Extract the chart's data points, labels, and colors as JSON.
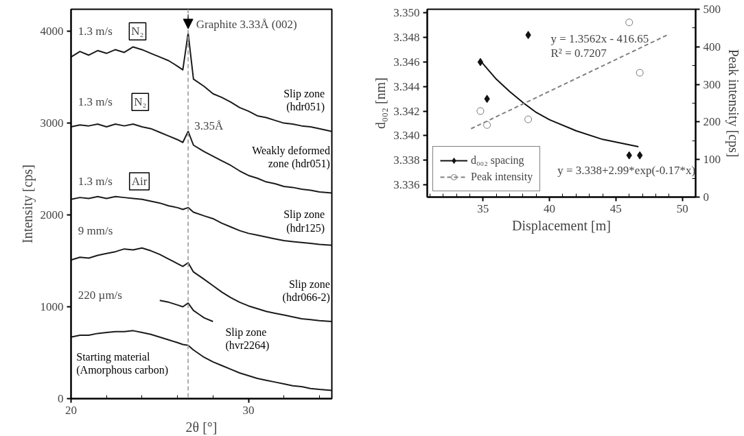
{
  "chart_data": [
    {
      "type": "line",
      "xlabel": "2θ [°]",
      "ylabel": "Intensity [cps]",
      "xlim": [
        20,
        34.7
      ],
      "ylim": [
        0,
        4240
      ],
      "xticks": [
        20,
        {
          "value": 22,
          "label": null
        },
        {
          "value": 24,
          "label": null
        },
        {
          "value": 26,
          "label": null
        },
        {
          "value": 28,
          "label": null
        },
        30,
        {
          "value": 32,
          "label": null
        },
        {
          "value": 34,
          "label": null
        }
      ],
      "yticks": [
        0,
        1000,
        2000,
        3000,
        4000
      ],
      "ref_lines": [
        {
          "axis": "x",
          "value": 26.6,
          "label": "Graphite 3.33Å (002)",
          "color": "#aaaaaa",
          "line_style": "dashed"
        }
      ],
      "annotations": [
        "1.3 m/s",
        "N₂",
        "1.3 m/s",
        "N₂",
        "1.3 m/s",
        "Air",
        "9 mm/s",
        "220 µm/s",
        "3.35Å"
      ],
      "series": [
        {
          "name": "Slip zone\n(hdr051)",
          "color": "#1a1a1a",
          "x": [
            20,
            20.5,
            21,
            21.5,
            22,
            22.5,
            23,
            23.5,
            24,
            24.5,
            25,
            25.5,
            26,
            26.3,
            26.6,
            26.9,
            27.5,
            28,
            28.5,
            29,
            29.5,
            30,
            30.5,
            31,
            31.5,
            32,
            32.5,
            33,
            33.5,
            34,
            34.7
          ],
          "values": [
            3720,
            3780,
            3740,
            3790,
            3760,
            3800,
            3770,
            3830,
            3800,
            3760,
            3720,
            3680,
            3620,
            3580,
            3980,
            3480,
            3400,
            3320,
            3280,
            3230,
            3170,
            3130,
            3080,
            3060,
            3030,
            3000,
            2990,
            2970,
            2960,
            2940,
            2910
          ]
        },
        {
          "name": "Weakly deformed\nzone (hdr051)",
          "color": "#1a1a1a",
          "x": [
            20,
            20.5,
            21,
            21.5,
            22,
            22.5,
            23,
            23.5,
            24,
            24.5,
            25,
            25.5,
            26,
            26.3,
            26.6,
            26.9,
            27.5,
            28,
            28.5,
            29,
            29.5,
            30,
            30.5,
            31,
            31.5,
            32,
            32.5,
            33,
            33.5,
            34,
            34.7
          ],
          "values": [
            2960,
            2980,
            2970,
            2990,
            2960,
            2990,
            2970,
            2990,
            2960,
            2940,
            2900,
            2860,
            2820,
            2790,
            2910,
            2760,
            2690,
            2640,
            2590,
            2540,
            2480,
            2430,
            2400,
            2360,
            2340,
            2310,
            2300,
            2280,
            2270,
            2250,
            2240
          ]
        },
        {
          "name": "Slip zone\n(hdr125)",
          "color": "#1a1a1a",
          "x": [
            20,
            20.5,
            21,
            21.5,
            22,
            22.5,
            23,
            23.5,
            24,
            24.5,
            25,
            25.5,
            26,
            26.3,
            26.6,
            26.9,
            27.5,
            28,
            28.5,
            29,
            29.5,
            30,
            30.5,
            31,
            31.5,
            32,
            32.5,
            33,
            33.5,
            34,
            34.7
          ],
          "values": [
            2170,
            2190,
            2180,
            2200,
            2180,
            2200,
            2190,
            2180,
            2170,
            2150,
            2130,
            2100,
            2080,
            2060,
            2080,
            2030,
            1990,
            1960,
            1910,
            1870,
            1830,
            1800,
            1780,
            1760,
            1740,
            1720,
            1710,
            1700,
            1690,
            1680,
            1670
          ]
        },
        {
          "name": "Slip zone\n(hdr066-2)",
          "color": "#1a1a1a",
          "x": [
            20,
            20.5,
            21,
            21.5,
            22,
            22.5,
            23,
            23.5,
            24,
            24.5,
            25,
            25.5,
            26,
            26.3,
            26.6,
            26.9,
            27.5,
            28,
            28.5,
            29,
            29.5,
            30,
            30.5,
            31,
            31.5,
            32,
            32.5,
            33,
            33.5,
            34,
            34.7
          ],
          "values": [
            1510,
            1540,
            1530,
            1560,
            1580,
            1600,
            1630,
            1620,
            1640,
            1610,
            1570,
            1520,
            1470,
            1440,
            1480,
            1380,
            1300,
            1230,
            1160,
            1100,
            1050,
            1010,
            980,
            950,
            930,
            910,
            890,
            870,
            860,
            850,
            840
          ]
        },
        {
          "name": "Slip zone\n(hvr2264)",
          "color": "#1a1a1a",
          "x": [
            25,
            25.5,
            26,
            26.3,
            26.6,
            26.9,
            27.2,
            27.5,
            28
          ],
          "values": [
            1070,
            1050,
            1020,
            1000,
            1040,
            960,
            920,
            880,
            840
          ]
        },
        {
          "name": "Starting material\n(Amorphous carbon)",
          "color": "#1a1a1a",
          "x": [
            20,
            20.5,
            21,
            21.5,
            22,
            22.5,
            23,
            23.5,
            24,
            24.5,
            25,
            25.5,
            26,
            26.3,
            26.6,
            26.9,
            27.5,
            28,
            28.5,
            29,
            29.5,
            30,
            30.5,
            31,
            31.5,
            32,
            32.5,
            33,
            33.5,
            34,
            34.7
          ],
          "values": [
            670,
            690,
            690,
            710,
            720,
            730,
            730,
            740,
            720,
            700,
            670,
            640,
            610,
            590,
            580,
            530,
            450,
            400,
            360,
            320,
            280,
            250,
            220,
            200,
            180,
            160,
            140,
            130,
            110,
            100,
            90
          ]
        }
      ]
    },
    {
      "type": "scatter",
      "xlabel": "Displacement [m]",
      "ylabel": "d₀₀₂ [nm]",
      "y2label": "Peak intensity [cps]",
      "xlim": [
        30.8,
        51
      ],
      "ylim": [
        3.335,
        3.3503
      ],
      "y2lim": [
        0,
        500
      ],
      "xticks": [
        {
          "value": 31,
          "label": null
        },
        {
          "value": 32,
          "label": null
        },
        {
          "value": 33,
          "label": null
        },
        {
          "value": 34,
          "label": null
        },
        35,
        {
          "value": 36,
          "label": null
        },
        {
          "value": 37,
          "label": null
        },
        {
          "value": 38,
          "label": null
        },
        {
          "value": 39,
          "label": null
        },
        40,
        {
          "value": 41,
          "label": null
        },
        {
          "value": 42,
          "label": null
        },
        {
          "value": 43,
          "label": null
        },
        {
          "value": 44,
          "label": null
        },
        45,
        {
          "value": 46,
          "label": null
        },
        {
          "value": 47,
          "label": null
        },
        {
          "value": 48,
          "label": null
        },
        {
          "value": 49,
          "label": null
        },
        50
      ],
      "yticks": [
        3.336,
        3.338,
        {
          "value": 3.34,
          "label": "3.340"
        },
        3.342,
        3.344,
        3.346,
        3.348,
        {
          "value": 3.35,
          "label": "3.350"
        }
      ],
      "y2ticks": [
        0,
        {
          "value": 50,
          "label": null
        },
        100,
        {
          "value": 150,
          "label": null
        },
        200,
        {
          "value": 250,
          "label": null
        },
        300,
        {
          "value": 350,
          "label": null
        },
        400,
        {
          "value": 450,
          "label": null
        },
        500
      ],
      "legend": "bottom left",
      "annotations": [
        "y = 1.3562x - 416.65",
        "R² = 0.7207",
        "y = 3.338+2.99*exp(-0.17*x)"
      ],
      "series": [
        {
          "name": "d₀₀₂ spacing",
          "type": "scatter",
          "marker": "diamond",
          "color": "#111111",
          "x": [
            34.8,
            35.3,
            38.4,
            46.0,
            46.8
          ],
          "values": [
            3.346,
            3.343,
            3.3482,
            3.3384,
            3.3384
          ]
        },
        {
          "type": "line",
          "line_style": "solid",
          "color": "#111111",
          "x": [
            34.8,
            36,
            37,
            38,
            39,
            40,
            42,
            44,
            46.7
          ],
          "values": [
            3.3461,
            3.3446,
            3.3436,
            3.3427,
            3.3419,
            3.3413,
            3.3404,
            3.3397,
            3.3391
          ]
        },
        {
          "name": "Peak intensity",
          "type": "scatter",
          "marker": "circle",
          "axis": "y2",
          "color": "#777777",
          "x": [
            34.8,
            35.3,
            38.4,
            46.0,
            46.8
          ],
          "values": [
            229,
            192,
            207,
            465,
            331
          ]
        },
        {
          "type": "line",
          "line_style": "dashed",
          "axis": "y2",
          "color": "#808080",
          "x": [
            34.1,
            48.9
          ],
          "values": [
            182,
            432
          ]
        }
      ]
    }
  ]
}
